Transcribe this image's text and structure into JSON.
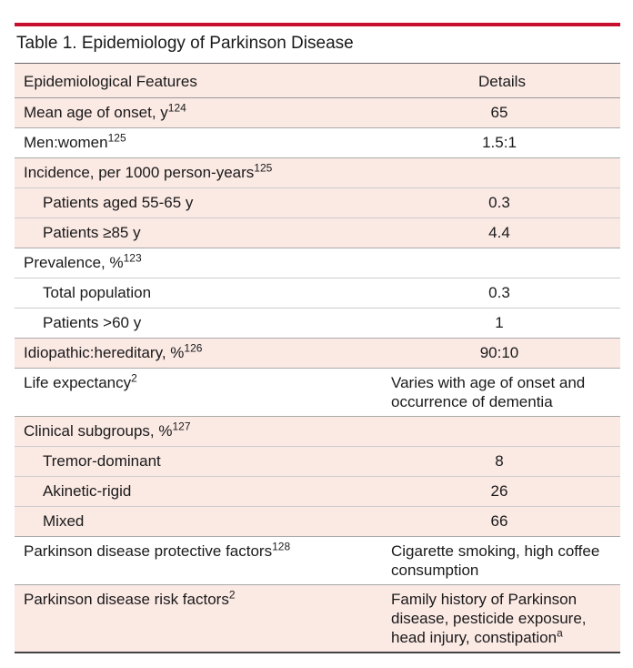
{
  "title": "Table 1. Epidemiology of Parkinson Disease",
  "headers": {
    "feature": "Epidemiological Features",
    "details": "Details"
  },
  "rows": [
    {
      "label": "Mean age of onset, y",
      "sup": "124",
      "value": "65"
    },
    {
      "label": "Men:women",
      "sup": "125",
      "value": "1.5:1"
    },
    {
      "label": "Incidence, per 1000 person-years",
      "sup": "125",
      "value": ""
    },
    {
      "label": "Patients aged 55-65 y",
      "sup": "",
      "value": "0.3"
    },
    {
      "label": "Patients ≥85 y",
      "sup": "",
      "value": "4.4"
    },
    {
      "label": "Prevalence, %",
      "sup": "123",
      "value": ""
    },
    {
      "label": "Total population",
      "sup": "",
      "value": "0.3"
    },
    {
      "label": "Patients >60 y",
      "sup": "",
      "value": "1"
    },
    {
      "label": "Idiopathic:hereditary, %",
      "sup": "126",
      "value": "90:10"
    },
    {
      "label": "Life expectancy",
      "sup": "2",
      "value": "Varies with age of onset and occurrence of dementia"
    },
    {
      "label": "Clinical subgroups, %",
      "sup": "127",
      "value": ""
    },
    {
      "label": "Tremor-dominant",
      "sup": "",
      "value": "8"
    },
    {
      "label": "Akinetic-rigid",
      "sup": "",
      "value": "26"
    },
    {
      "label": "Mixed",
      "sup": "",
      "value": "66"
    },
    {
      "label": "Parkinson disease protective factors",
      "sup": "128",
      "value": "Cigarette smoking, high coffee consumption"
    },
    {
      "label": "Parkinson disease risk factors",
      "sup": "2",
      "value": "Family history of Parkinson disease, pesticide exposure, head injury, constipation",
      "value_sup": "a"
    }
  ],
  "colors": {
    "accent_bar": "#c8102e",
    "row_shading": "#fbe9e4"
  }
}
